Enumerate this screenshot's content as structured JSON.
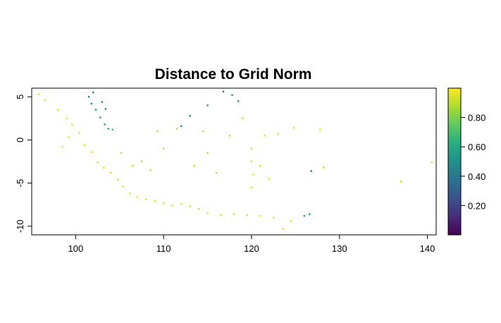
{
  "chart_data": {
    "type": "heatmap",
    "title": "Distance to Grid Norm",
    "xlabel": "",
    "ylabel": "",
    "xlim": [
      95,
      141
    ],
    "ylim": [
      -11,
      6
    ],
    "x_ticks": [
      100,
      110,
      120,
      130,
      140
    ],
    "y_ticks": [
      5,
      0,
      -5,
      -10
    ],
    "colorbar": {
      "range": [
        0,
        1
      ],
      "ticks": [
        0.2,
        0.4,
        0.6,
        0.8
      ],
      "tick_labels": [
        "0.20",
        "0.40",
        "0.60",
        "0.80"
      ],
      "colormap": "viridis"
    },
    "cells": [
      {
        "x": 101.5,
        "y": 5.0,
        "v": 0.45
      },
      {
        "x": 101.8,
        "y": 4.2,
        "v": 0.45
      },
      {
        "x": 102.3,
        "y": 3.5,
        "v": 0.5
      },
      {
        "x": 102.8,
        "y": 2.6,
        "v": 0.5
      },
      {
        "x": 103.3,
        "y": 1.8,
        "v": 0.55
      },
      {
        "x": 103.7,
        "y": 1.3,
        "v": 0.6
      },
      {
        "x": 103.0,
        "y": 4.4,
        "v": 0.45
      },
      {
        "x": 103.4,
        "y": 3.6,
        "v": 0.5
      },
      {
        "x": 102.0,
        "y": 5.5,
        "v": 0.4
      },
      {
        "x": 104.2,
        "y": 1.2,
        "v": 0.7
      },
      {
        "x": 95.8,
        "y": 5.3,
        "v": 0.95
      },
      {
        "x": 96.5,
        "y": 4.6,
        "v": 0.95
      },
      {
        "x": 98.0,
        "y": 3.5,
        "v": 0.95
      },
      {
        "x": 99.0,
        "y": 2.5,
        "v": 0.95
      },
      {
        "x": 99.6,
        "y": 1.8,
        "v": 0.95
      },
      {
        "x": 100.4,
        "y": 0.8,
        "v": 0.95
      },
      {
        "x": 101.0,
        "y": -0.6,
        "v": 0.95
      },
      {
        "x": 101.8,
        "y": -1.4,
        "v": 0.95
      },
      {
        "x": 102.5,
        "y": -2.6,
        "v": 0.95
      },
      {
        "x": 103.2,
        "y": -3.2,
        "v": 0.95
      },
      {
        "x": 104.0,
        "y": -3.8,
        "v": 0.95
      },
      {
        "x": 104.8,
        "y": -4.6,
        "v": 0.95
      },
      {
        "x": 105.4,
        "y": -5.4,
        "v": 0.95
      },
      {
        "x": 106.2,
        "y": -6.2,
        "v": 0.95
      },
      {
        "x": 107.0,
        "y": -6.6,
        "v": 0.95
      },
      {
        "x": 108.0,
        "y": -6.9,
        "v": 0.95
      },
      {
        "x": 109.0,
        "y": -7.1,
        "v": 0.95
      },
      {
        "x": 110.0,
        "y": -7.3,
        "v": 0.95
      },
      {
        "x": 111.0,
        "y": -7.6,
        "v": 0.95
      },
      {
        "x": 112.0,
        "y": -7.4,
        "v": 0.95
      },
      {
        "x": 113.0,
        "y": -7.7,
        "v": 0.95
      },
      {
        "x": 114.0,
        "y": -8.0,
        "v": 0.95
      },
      {
        "x": 115.0,
        "y": -8.5,
        "v": 0.95
      },
      {
        "x": 116.5,
        "y": -8.7,
        "v": 0.95
      },
      {
        "x": 118.0,
        "y": -8.6,
        "v": 0.95
      },
      {
        "x": 119.5,
        "y": -8.7,
        "v": 0.95
      },
      {
        "x": 121.0,
        "y": -8.8,
        "v": 0.95
      },
      {
        "x": 122.5,
        "y": -9.0,
        "v": 0.95
      },
      {
        "x": 123.6,
        "y": -10.3,
        "v": 0.95
      },
      {
        "x": 124.5,
        "y": -9.4,
        "v": 0.95
      },
      {
        "x": 126.0,
        "y": -8.8,
        "v": 0.55
      },
      {
        "x": 126.6,
        "y": -8.6,
        "v": 0.55
      },
      {
        "x": 112.0,
        "y": 1.6,
        "v": 0.5
      },
      {
        "x": 113.0,
        "y": 2.8,
        "v": 0.45
      },
      {
        "x": 115.0,
        "y": 4.0,
        "v": 0.45
      },
      {
        "x": 116.8,
        "y": 5.6,
        "v": 0.4
      },
      {
        "x": 117.8,
        "y": 5.2,
        "v": 0.45
      },
      {
        "x": 118.5,
        "y": 4.5,
        "v": 0.45
      },
      {
        "x": 119.0,
        "y": 2.5,
        "v": 0.9
      },
      {
        "x": 117.5,
        "y": 0.5,
        "v": 0.9
      },
      {
        "x": 115.0,
        "y": -1.5,
        "v": 0.9
      },
      {
        "x": 113.5,
        "y": -3.0,
        "v": 0.9
      },
      {
        "x": 110.0,
        "y": -1.0,
        "v": 0.9
      },
      {
        "x": 109.3,
        "y": 1.0,
        "v": 0.9
      },
      {
        "x": 111.5,
        "y": 1.3,
        "v": 0.9
      },
      {
        "x": 114.5,
        "y": 1.0,
        "v": 0.9
      },
      {
        "x": 116.0,
        "y": -3.8,
        "v": 0.9
      },
      {
        "x": 120.0,
        "y": -1.0,
        "v": 0.95
      },
      {
        "x": 120.0,
        "y": -2.5,
        "v": 0.95
      },
      {
        "x": 120.2,
        "y": -4.0,
        "v": 0.95
      },
      {
        "x": 120.0,
        "y": -5.5,
        "v": 0.95
      },
      {
        "x": 121.0,
        "y": -3.0,
        "v": 0.95
      },
      {
        "x": 122.0,
        "y": -4.5,
        "v": 0.95
      },
      {
        "x": 121.5,
        "y": 0.5,
        "v": 0.95
      },
      {
        "x": 123.0,
        "y": 0.7,
        "v": 0.95
      },
      {
        "x": 124.8,
        "y": 1.4,
        "v": 0.95
      },
      {
        "x": 127.8,
        "y": 1.2,
        "v": 0.95
      },
      {
        "x": 126.8,
        "y": -3.6,
        "v": 0.4
      },
      {
        "x": 128.2,
        "y": -3.2,
        "v": 0.9
      },
      {
        "x": 137.0,
        "y": -4.8,
        "v": 0.9
      },
      {
        "x": 140.5,
        "y": -2.6,
        "v": 0.95
      },
      {
        "x": 105.2,
        "y": -1.5,
        "v": 0.9
      },
      {
        "x": 106.5,
        "y": -3.0,
        "v": 0.9
      },
      {
        "x": 107.5,
        "y": -2.5,
        "v": 0.9
      },
      {
        "x": 108.5,
        "y": -3.5,
        "v": 0.9
      },
      {
        "x": 99.2,
        "y": 0.3,
        "v": 0.95
      },
      {
        "x": 98.5,
        "y": -0.8,
        "v": 0.95
      }
    ]
  }
}
